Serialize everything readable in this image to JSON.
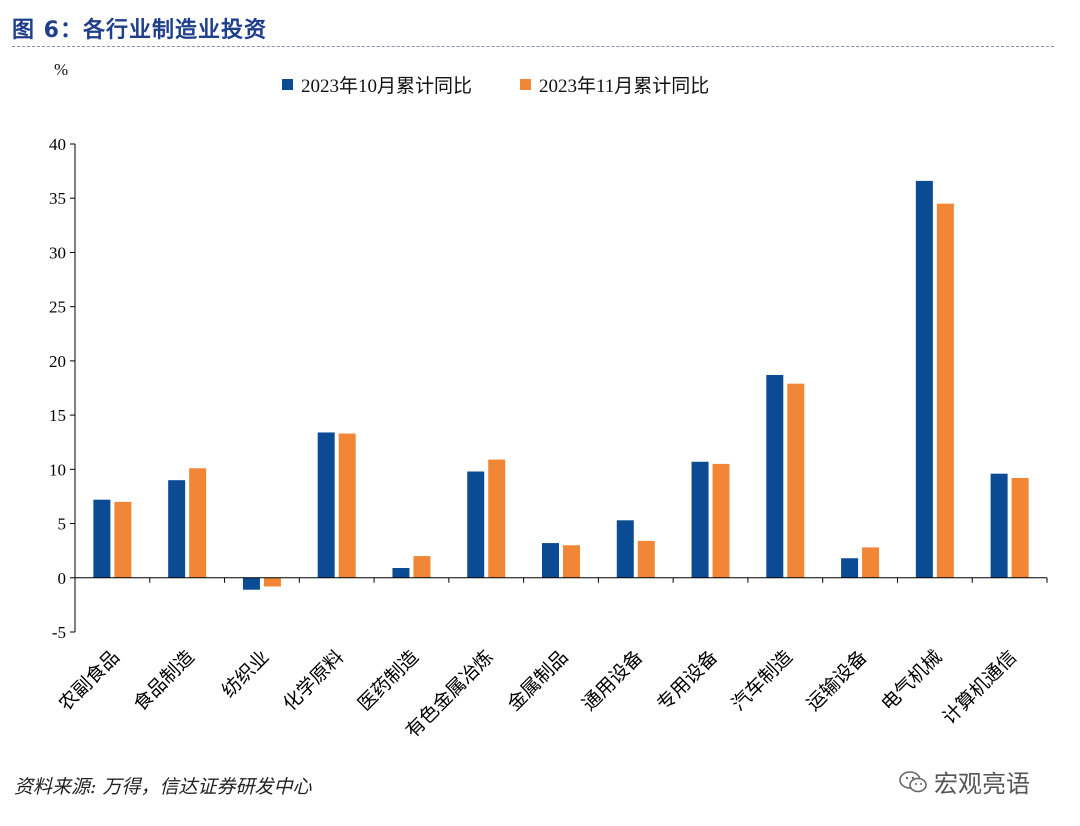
{
  "figure_title": "图 6：各行业制造业投资",
  "unit_label": "%",
  "source_note": "资料来源: 万得，信达证券研发中心",
  "watermark_text": "宏观亮语",
  "colors": {
    "series1": "#0a4b93",
    "series2": "#f08636",
    "axis": "#000000",
    "title": "#1f3f8a"
  },
  "chart_data": {
    "type": "bar",
    "categories": [
      "农副食品",
      "食品制造",
      "纺织业",
      "化学原料",
      "医药制造",
      "有色金属冶炼",
      "金属制品",
      "通用设备",
      "专用设备",
      "汽车制造",
      "运输设备",
      "电气机械",
      "计算机通信"
    ],
    "series": [
      {
        "name": "2023年10月累计同比",
        "values": [
          7.2,
          9.0,
          -1.1,
          13.4,
          0.9,
          9.8,
          3.2,
          5.3,
          10.7,
          18.7,
          1.8,
          36.6,
          9.6
        ]
      },
      {
        "name": "2023年11月累计同比",
        "values": [
          7.0,
          10.1,
          -0.8,
          13.3,
          2.0,
          10.9,
          3.0,
          3.4,
          10.5,
          17.9,
          2.8,
          34.5,
          9.2
        ]
      }
    ],
    "ylim": [
      -5,
      40
    ],
    "yticks": [
      -5,
      0,
      5,
      10,
      15,
      20,
      25,
      30,
      35,
      40
    ],
    "xlabel": "",
    "ylabel": "%",
    "legend_position": "top"
  }
}
